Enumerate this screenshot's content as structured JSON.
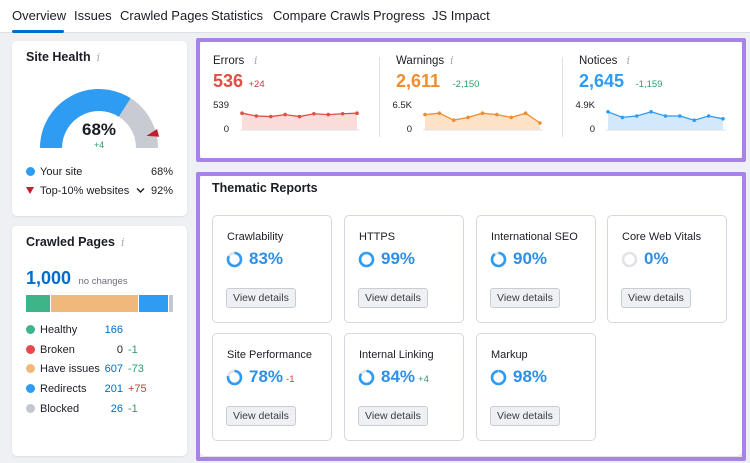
{
  "tabs": [
    {
      "label": "Overview",
      "active": true
    },
    {
      "label": "Issues"
    },
    {
      "label": "Crawled Pages"
    },
    {
      "label": "Statistics"
    },
    {
      "label": "Compare Crawls"
    },
    {
      "label": "Progress"
    },
    {
      "label": "JS Impact"
    }
  ],
  "site_health": {
    "title": "Site Health",
    "info_glyph": "i",
    "score": "68%",
    "score_value": 68,
    "top10_value": 92,
    "delta": "+4",
    "legend": [
      {
        "label": "Your site",
        "value": "68%",
        "color": "#2e9cf2"
      },
      {
        "label": "Top-10% websites",
        "value": "92%",
        "color": "#c2202b"
      }
    ]
  },
  "crawled_pages": {
    "title": "Crawled Pages",
    "info_glyph": "i",
    "total": "1,000",
    "total_note": "no changes",
    "bar_segments": [
      {
        "value": 166,
        "color": "#3eb489"
      },
      {
        "value": 0,
        "color": "#e5484d"
      },
      {
        "value": 607,
        "color": "#f0b97a"
      },
      {
        "value": 201,
        "color": "#2e9cf2"
      },
      {
        "value": 26,
        "color": "#c4c7ce"
      }
    ],
    "rows": [
      {
        "label": "Healthy",
        "value": "166",
        "delta": "",
        "color": "#3eb489"
      },
      {
        "label": "Broken",
        "value": "0",
        "delta": "-1",
        "color": "#e5484d"
      },
      {
        "label": "Have issues",
        "value": "607",
        "delta": "-73",
        "color": "#f0b97a"
      },
      {
        "label": "Redirects",
        "value": "201",
        "delta": "+75",
        "color": "#2e9cf2"
      },
      {
        "label": "Blocked",
        "value": "26",
        "delta": "-1",
        "color": "#c4c7ce"
      }
    ]
  },
  "metrics": [
    {
      "label": "Errors",
      "value": "536",
      "delta": "+24",
      "color": "#e04f44",
      "delta_color": "#d1343f",
      "fill": "#fadcda",
      "ymax_label": "539",
      "ymin_label": "0",
      "series": [
        0.6,
        0.5,
        0.48,
        0.55,
        0.48,
        0.58,
        0.55,
        0.58,
        0.6
      ]
    },
    {
      "label": "Warnings",
      "value": "2,611",
      "delta": "-2,150",
      "color": "#f08d2e",
      "delta_color": "#2a9d6c",
      "fill": "#fde2c8",
      "ymax_label": "6.5K",
      "ymin_label": "0",
      "series": [
        0.55,
        0.6,
        0.35,
        0.45,
        0.6,
        0.55,
        0.45,
        0.6,
        0.25
      ]
    },
    {
      "label": "Notices",
      "value": "2,645",
      "delta": "-1,159",
      "color": "#2e9cf2",
      "delta_color": "#2a9d6c",
      "fill": "#d3e8fb",
      "ymax_label": "4.9K",
      "ymin_label": "0",
      "series": [
        0.65,
        0.45,
        0.5,
        0.65,
        0.5,
        0.5,
        0.35,
        0.5,
        0.4
      ]
    }
  ],
  "thematic": {
    "title": "Thematic Reports",
    "button_label": "View details",
    "tiles": [
      {
        "name": "Crawlability",
        "pct": "83%",
        "value": 83,
        "delta": "",
        "delta_color": ""
      },
      {
        "name": "HTTPS",
        "pct": "99%",
        "value": 99,
        "delta": "",
        "delta_color": ""
      },
      {
        "name": "International SEO",
        "pct": "90%",
        "value": 90,
        "delta": "",
        "delta_color": ""
      },
      {
        "name": "Core Web Vitals",
        "pct": "0%",
        "value": 0,
        "delta": "",
        "delta_color": ""
      },
      {
        "name": "Site Performance",
        "pct": "78%",
        "value": 78,
        "delta": "-1",
        "delta_color": "#d1343f"
      },
      {
        "name": "Internal Linking",
        "pct": "84%",
        "value": 84,
        "delta": "+4",
        "delta_color": "#2a9d6c"
      },
      {
        "name": "Markup",
        "pct": "98%",
        "value": 98,
        "delta": "",
        "delta_color": ""
      }
    ]
  },
  "colors": {
    "accent": "#006dca",
    "highlight": "#a783e6",
    "ring": "#2e9cf2"
  }
}
